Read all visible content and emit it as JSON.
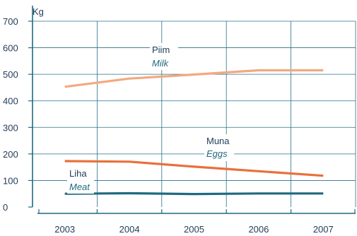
{
  "chart_data": {
    "type": "line",
    "x": [
      "2003",
      "2004",
      "2005",
      "2006",
      "2007"
    ],
    "ylabel": "Kg",
    "ylim": [
      0,
      700
    ],
    "yticks": [
      0,
      100,
      200,
      300,
      400,
      500,
      600,
      700
    ],
    "grid": true,
    "series": [
      {
        "name": "Piim",
        "name_alt": "Milk",
        "values": [
          453,
          484,
          499,
          515,
          515
        ],
        "color": "#f2a97f"
      },
      {
        "name": "Muna",
        "name_alt": "Eggs",
        "values": [
          173,
          171,
          152,
          135,
          118
        ],
        "color": "#e8703a"
      },
      {
        "name": "Liha",
        "name_alt": "Meat",
        "values": [
          50,
          52,
          49,
          51,
          51
        ],
        "color": "#1f6a80"
      }
    ]
  },
  "colors": {
    "grid": "#2a6f8a",
    "axis": "#1f6a80",
    "text": "#1f3b57",
    "label_alt": "#1f6a80"
  }
}
